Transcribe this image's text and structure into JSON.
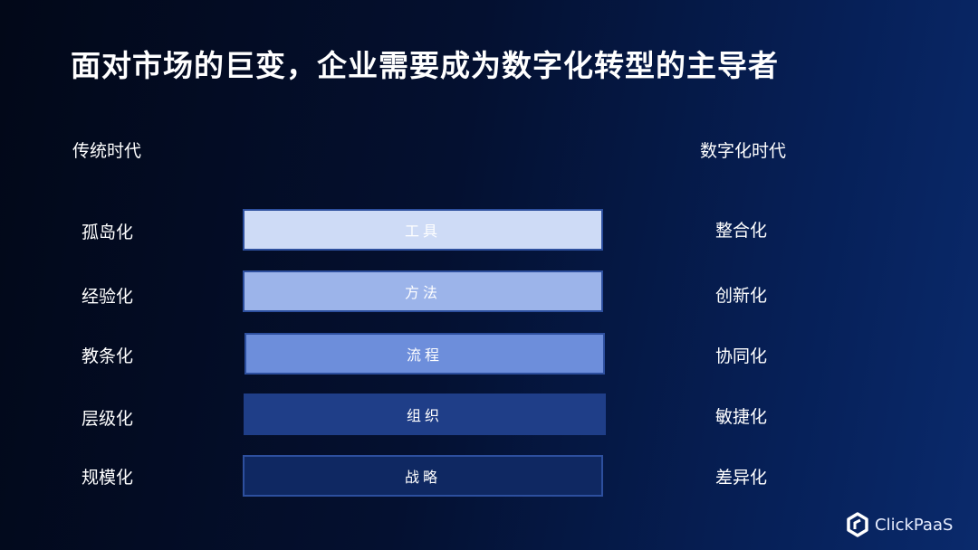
{
  "title": "面对市场的巨变，企业需要成为数字化转型的主导者",
  "left_header": "传统时代",
  "right_header": "数字化时代",
  "left_items": [
    "孤岛化",
    "经验化",
    "教条化",
    "层级化",
    "规模化"
  ],
  "right_items": [
    "整合化",
    "创新化",
    "协同化",
    "敏捷化",
    "差异化"
  ],
  "bars": [
    {
      "label": "工具",
      "color": "#cedbf6"
    },
    {
      "label": "方法",
      "color": "#9cb4ea"
    },
    {
      "label": "流程",
      "color": "#6d8edb"
    },
    {
      "label": "组织",
      "color": "#1f3e88"
    },
    {
      "label": "战略",
      "color": "#0f2862"
    }
  ],
  "logo": {
    "text": "ClickPaaS",
    "icon": "clickpaas-logo-icon"
  }
}
